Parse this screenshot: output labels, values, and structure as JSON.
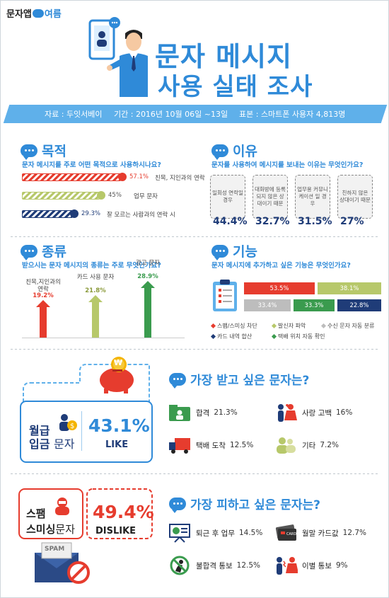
{
  "header": {
    "logo": {
      "text_a": "문자앱",
      "text_b": "여름"
    },
    "title_line1": "문자 메시지",
    "title_line2": "사용 실태 조사"
  },
  "infobar": {
    "source": "자료 : 두잇서베이",
    "period": "기간 : 2016년 10월 06일 ~13일",
    "sample": "표본 : 스마트폰 사용자 4,813명"
  },
  "purpose": {
    "title": "목적",
    "question": "문자 메시지를 주로 어떤 목적으로 사용하시나요?",
    "items": [
      {
        "value": 57.1,
        "pct_text": "57.1%",
        "label": "친목, 지인과의 연락",
        "color": "#e63c2e"
      },
      {
        "value": 45,
        "pct_text": "45%",
        "label": "업무 문자",
        "color": "#b7c86a"
      },
      {
        "value": 29.3,
        "pct_text": "29.3%",
        "label": "잘 모르는 사람과의 연락 시",
        "color": "#1f3c78"
      }
    ]
  },
  "reason": {
    "title": "이유",
    "question": "문자를 사용하여 메시지를 보내는 이유는 무엇인가요?",
    "items": [
      {
        "text": "일회성 연락일 경우",
        "pct_text": "44.4%"
      },
      {
        "text": "대화방에 등록되지 않은 상대이기 때문",
        "pct_text": "32.7%"
      },
      {
        "text": "업무용 커뮤니케이션 일 경우",
        "pct_text": "31.5%"
      },
      {
        "text": "친하지 않은 상대이기 때문",
        "pct_text": "27%"
      }
    ]
  },
  "kind": {
    "title": "종류",
    "question": "받으시는 문자 메시지의 종류는 주로 무엇인가요?",
    "items": [
      {
        "label": "친목,지인과의 연락",
        "value": 19.2,
        "pct_text": "19.2%",
        "color": "#e63c2e"
      },
      {
        "label": "카드 사용 문자",
        "value": 21.8,
        "pct_text": "21.8%",
        "color": "#b7c86a"
      },
      {
        "label": "광고 문자",
        "value": 28.9,
        "pct_text": "28.9%",
        "color": "#3a9b4e"
      }
    ]
  },
  "feature": {
    "title": "기능",
    "question": "문자 메시지에 추가하고 싶은 기능은 무엇인가요?",
    "cells": [
      {
        "value": 53.5,
        "pct_text": "53.5%",
        "color": "#e63c2e"
      },
      {
        "value": 38.1,
        "pct_text": "38.1%",
        "color": "#b7c86a"
      },
      {
        "value": 33.4,
        "pct_text": "33.4%",
        "color": "#bdbdbd"
      },
      {
        "value": 33.3,
        "pct_text": "33.3%",
        "color": "#3a9b4e"
      },
      {
        "value": 22.8,
        "pct_text": "22.8%",
        "color": "#1f3c78"
      }
    ],
    "legend": [
      {
        "label": "스팸/스미싱 차단",
        "color": "#e63c2e"
      },
      {
        "label": "발신자 파악",
        "color": "#b7c86a"
      },
      {
        "label": "수신 문자 자동 분류",
        "color": "#bdbdbd"
      },
      {
        "label": "카드 내역 합산",
        "color": "#1f3c78"
      },
      {
        "label": "택배 위치 자동 확인",
        "color": "#3a9b4e"
      }
    ]
  },
  "like": {
    "label_line1": "월급",
    "label_line2a": "입금",
    "label_line2b": "문자",
    "pct_text": "43.1%",
    "tag": "LIKE",
    "coin_symbol": "₩",
    "heading": "가장 받고 싶은 문자는?",
    "items": [
      {
        "label": "합격",
        "pct_text": "21.3%",
        "icon": "folder-person-icon"
      },
      {
        "label": "사랑 고백",
        "pct_text": "16%",
        "icon": "couple-icon"
      },
      {
        "label": "택배 도착",
        "pct_text": "12.5%",
        "icon": "truck-icon"
      },
      {
        "label": "기타",
        "pct_text": "7.2%",
        "icon": "people-icon"
      }
    ]
  },
  "dislike": {
    "label_line1": "스팸",
    "label_line2a": "스미싱",
    "label_line2b": "문자",
    "pct_text": "49.4%",
    "tag": "DISLIKE",
    "envelope_text": "SPAM",
    "heading": "가장 피하고 싶은 문자는?",
    "items": [
      {
        "label": "퇴근 후 업무",
        "pct_text": "14.5%",
        "icon": "presentation-icon"
      },
      {
        "label": "월말 카드값",
        "pct_text": "12.7%",
        "icon": "card-icon"
      },
      {
        "label": "불합격 통보",
        "pct_text": "12.5%",
        "icon": "fail-icon"
      },
      {
        "label": "이별 통보",
        "pct_text": "9%",
        "icon": "breakup-icon"
      }
    ],
    "card_text": "CARD"
  }
}
